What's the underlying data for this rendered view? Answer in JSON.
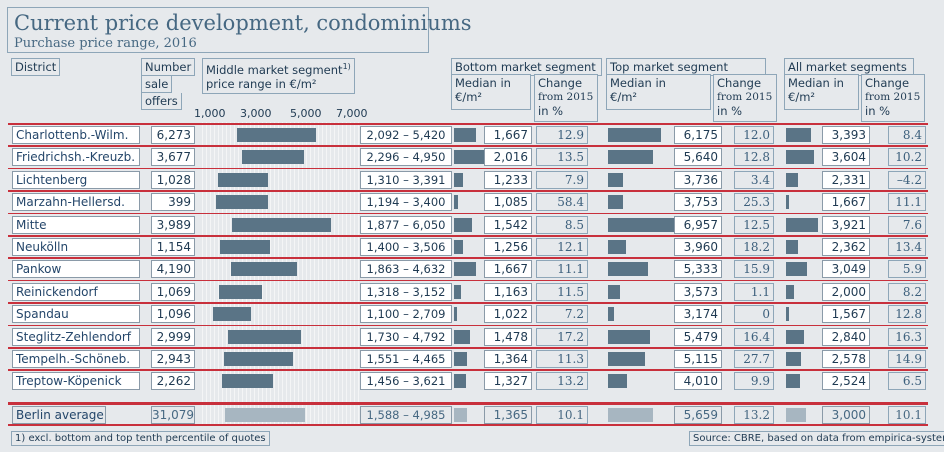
{
  "title": "Current price development, condominiums",
  "subtitle": "Purchase price range, 2016",
  "headers": {
    "district": "District",
    "offers": [
      "Number",
      "sale",
      "offers"
    ],
    "middle": [
      "Middle market segment",
      "1)",
      "price range in €/m²"
    ],
    "bottom": "Bottom market segment",
    "top": "Top market segment",
    "all": "All market segments",
    "median": [
      "Median in",
      "€/m²"
    ],
    "change": [
      "Change",
      "from 2015",
      "in %"
    ]
  },
  "range_axis": {
    "ticks": [
      "1,000",
      "3,000",
      "5,000",
      "7,000"
    ],
    "min": 500,
    "max": 7500
  },
  "footnote": "1) excl. bottom and top tenth percentile of quotes",
  "source": "Source: CBRE, based on data from empirica-systeme",
  "colors": {
    "bar": "#5a7486",
    "bar_avg": "#a7b6c1",
    "rule": "#c8303c",
    "title": "#466882"
  },
  "chart_data": {
    "type": "table",
    "columns": [
      "District",
      "Number sale offers",
      "Middle market segment price range in €/m²",
      "Bottom median €/m²",
      "Bottom change from 2015 in %",
      "Top median €/m²",
      "Top change from 2015 in %",
      "All median €/m²",
      "All change from 2015 in %"
    ],
    "rows": [
      {
        "district": "Charlottenb.-Wilm.",
        "offers": "6,273",
        "range": "2,092 – 5,420",
        "lo": 2092,
        "hi": 5420,
        "b_med": "1,667",
        "b_val": 1667,
        "b_chg": "12.9",
        "t_med": "6,175",
        "t_val": 6175,
        "t_chg": "12.0",
        "a_med": "3,393",
        "a_val": 3393,
        "a_chg": "8.4"
      },
      {
        "district": "Friedrichsh.-Kreuzb.",
        "offers": "3,677",
        "range": "2,296 – 4,950",
        "lo": 2296,
        "hi": 4950,
        "b_med": "2,016",
        "b_val": 2016,
        "b_chg": "13.5",
        "t_med": "5,640",
        "t_val": 5640,
        "t_chg": "12.8",
        "a_med": "3,604",
        "a_val": 3604,
        "a_chg": "10.2"
      },
      {
        "district": "Lichtenberg",
        "offers": "1,028",
        "range": "1,310 – 3,391",
        "lo": 1310,
        "hi": 3391,
        "b_med": "1,233",
        "b_val": 1233,
        "b_chg": "7.9",
        "t_med": "3,736",
        "t_val": 3736,
        "t_chg": "3.4",
        "a_med": "2,331",
        "a_val": 2331,
        "a_chg": "–4.2"
      },
      {
        "district": "Marzahn-Hellersd.",
        "offers": "399",
        "range": "1,194 – 3,400",
        "lo": 1194,
        "hi": 3400,
        "b_med": "1,085",
        "b_val": 1085,
        "b_chg": "58.4",
        "t_med": "3,753",
        "t_val": 3753,
        "t_chg": "25.3",
        "a_med": "1,667",
        "a_val": 1667,
        "a_chg": "11.1"
      },
      {
        "district": "Mitte",
        "offers": "3,989",
        "range": "1,877 – 6,050",
        "lo": 1877,
        "hi": 6050,
        "b_med": "1,542",
        "b_val": 1542,
        "b_chg": "8.5",
        "t_med": "6,957",
        "t_val": 6957,
        "t_chg": "12.5",
        "a_med": "3,921",
        "a_val": 3921,
        "a_chg": "7.6"
      },
      {
        "district": "Neukölln",
        "offers": "1,154",
        "range": "1,400 – 3,506",
        "lo": 1400,
        "hi": 3506,
        "b_med": "1,256",
        "b_val": 1256,
        "b_chg": "12.1",
        "t_med": "3,960",
        "t_val": 3960,
        "t_chg": "18.2",
        "a_med": "2,362",
        "a_val": 2362,
        "a_chg": "13.4"
      },
      {
        "district": "Pankow",
        "offers": "4,190",
        "range": "1,863 – 4,632",
        "lo": 1863,
        "hi": 4632,
        "b_med": "1,667",
        "b_val": 1667,
        "b_chg": "11.1",
        "t_med": "5,333",
        "t_val": 5333,
        "t_chg": "15.9",
        "a_med": "3,049",
        "a_val": 3049,
        "a_chg": "5.9"
      },
      {
        "district": "Reinickendorf",
        "offers": "1,069",
        "range": "1,318 – 3,152",
        "lo": 1318,
        "hi": 3152,
        "b_med": "1,163",
        "b_val": 1163,
        "b_chg": "11.5",
        "t_med": "3,573",
        "t_val": 3573,
        "t_chg": "1.1",
        "a_med": "2,000",
        "a_val": 2000,
        "a_chg": "8.2"
      },
      {
        "district": "Spandau",
        "offers": "1,096",
        "range": "1,100 – 2,709",
        "lo": 1100,
        "hi": 2709,
        "b_med": "1,022",
        "b_val": 1022,
        "b_chg": "7.2",
        "t_med": "3,174",
        "t_val": 3174,
        "t_chg": "0",
        "a_med": "1,567",
        "a_val": 1567,
        "a_chg": "12.8"
      },
      {
        "district": "Steglitz-Zehlendorf",
        "offers": "2,999",
        "range": "1,730 – 4,792",
        "lo": 1730,
        "hi": 4792,
        "b_med": "1,478",
        "b_val": 1478,
        "b_chg": "17.2",
        "t_med": "5,479",
        "t_val": 5479,
        "t_chg": "16.4",
        "a_med": "2,840",
        "a_val": 2840,
        "a_chg": "16.3"
      },
      {
        "district": "Tempelh.-Schöneb.",
        "offers": "2,943",
        "range": "1,551 – 4,465",
        "lo": 1551,
        "hi": 4465,
        "b_med": "1,364",
        "b_val": 1364,
        "b_chg": "11.3",
        "t_med": "5,115",
        "t_val": 5115,
        "t_chg": "27.7",
        "a_med": "2,578",
        "a_val": 2578,
        "a_chg": "14.9"
      },
      {
        "district": "Treptow-Köpenick",
        "offers": "2,262",
        "range": "1,456 – 3,621",
        "lo": 1456,
        "hi": 3621,
        "b_med": "1,327",
        "b_val": 1327,
        "b_chg": "13.2",
        "t_med": "4,010",
        "t_val": 4010,
        "t_chg": "9.9",
        "a_med": "2,524",
        "a_val": 2524,
        "a_chg": "6.5"
      }
    ],
    "average": {
      "district": "Berlin average",
      "offers": "31,079",
      "range": "1,588 – 4,985",
      "lo": 1588,
      "hi": 4985,
      "b_med": "1,365",
      "b_val": 1365,
      "b_chg": "10.1",
      "t_med": "5,659",
      "t_val": 5659,
      "t_chg": "13.2",
      "a_med": "3,000",
      "a_val": 3000,
      "a_chg": "10.1"
    }
  }
}
